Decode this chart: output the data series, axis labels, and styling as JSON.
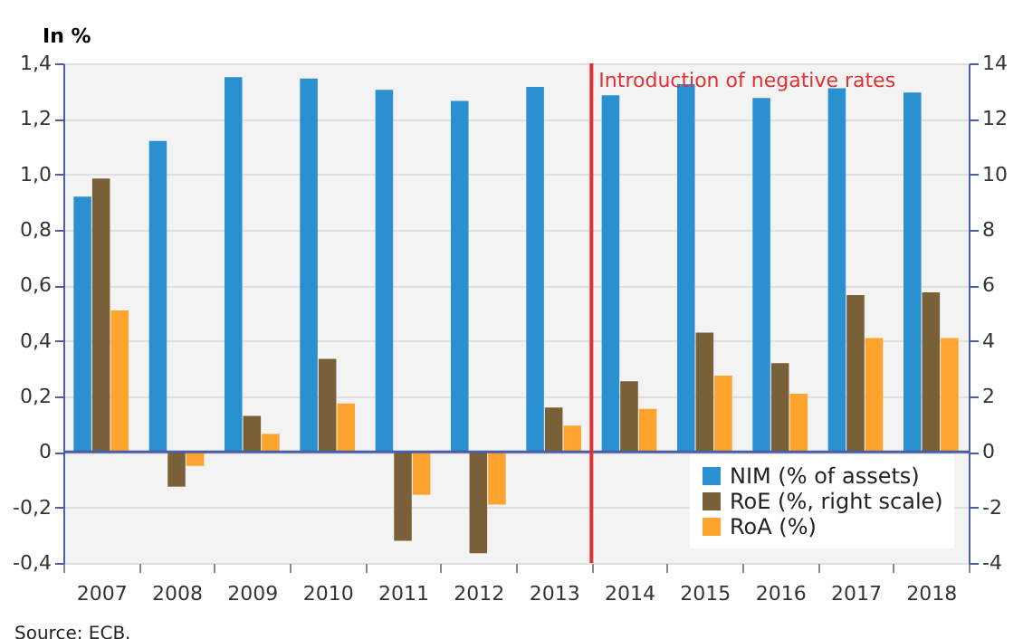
{
  "chart_data": {
    "type": "bar",
    "ylabel": "In %",
    "categories": [
      "2007",
      "2008",
      "2009",
      "2010",
      "2011",
      "2012",
      "2013",
      "2014",
      "2015",
      "2016",
      "2017",
      "2018"
    ],
    "series": [
      {
        "name": "NIM (% of assets)",
        "color": "#2b90d0",
        "values": [
          0.92,
          1.12,
          1.35,
          1.345,
          1.305,
          1.265,
          1.315,
          1.285,
          1.325,
          1.275,
          1.31,
          1.295
        ]
      },
      {
        "name": "RoE (%, right scale)",
        "color": "#7a6038",
        "axis": "y2",
        "values": [
          9.85,
          -1.25,
          1.3,
          3.35,
          -3.2,
          -3.65,
          1.6,
          2.55,
          4.3,
          3.2,
          5.65,
          5.75
        ]
      },
      {
        "name": "RoA (%)",
        "color": "#ffa32f",
        "values": [
          0.51,
          -0.05,
          0.065,
          0.175,
          -0.155,
          -0.19,
          0.095,
          0.155,
          0.275,
          0.21,
          0.41,
          0.41
        ]
      }
    ],
    "ylim": [
      -0.4,
      1.4
    ],
    "yticks": [
      {
        "value": -0.4,
        "label": "-0,4"
      },
      {
        "value": -0.2,
        "label": "-0,2"
      },
      {
        "value": 0,
        "label": "0"
      },
      {
        "value": 0.2,
        "label": "0,2"
      },
      {
        "value": 0.4,
        "label": "0,4"
      },
      {
        "value": 0.6,
        "label": "0,6"
      },
      {
        "value": 0.8,
        "label": "0,8"
      },
      {
        "value": 1.0,
        "label": "1,0"
      },
      {
        "value": 1.2,
        "label": "1,2"
      },
      {
        "value": 1.4,
        "label": "1,4"
      }
    ],
    "y2lim": [
      -4,
      14
    ],
    "y2ticks": [
      -4,
      -2,
      0,
      2,
      4,
      6,
      8,
      10,
      12,
      14
    ],
    "ref_lines": [
      {
        "axis": "x",
        "value": "2014",
        "label": "Introduction of negative rates",
        "color": "#e03030"
      },
      {
        "axis": "y",
        "value": 0,
        "color": "#4a5ea8"
      }
    ],
    "grid": "y",
    "legend": "bottom right",
    "annotations": [
      "Source: ECB."
    ]
  }
}
